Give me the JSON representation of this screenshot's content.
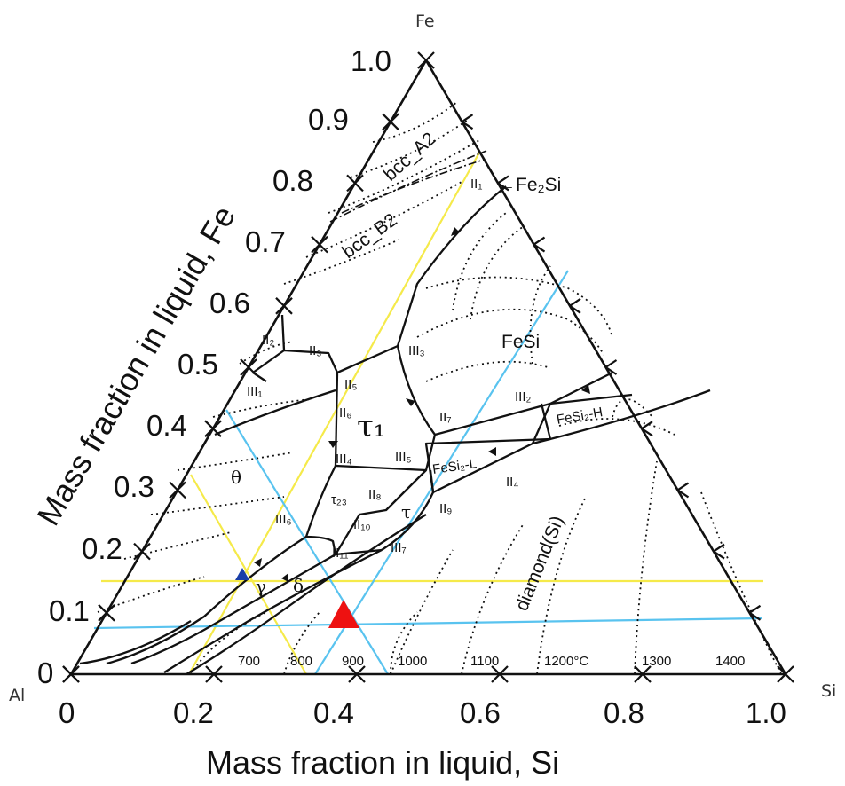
{
  "corners": {
    "top": "Fe",
    "left": "Al",
    "right": "Si"
  },
  "axis_titles": {
    "left": "Mass fraction in liquid, Fe",
    "bottom": "Mass fraction in liquid, Si"
  },
  "left_ticks": [
    "1.0",
    "0.9",
    "0.8",
    "0.7",
    "0.6",
    "0.5",
    "0.4",
    "0.3",
    "0.2",
    "0.1",
    "0"
  ],
  "bottom_ticks": [
    "0",
    "0.2",
    "0.4",
    "0.6",
    "0.8",
    "1.0"
  ],
  "phase_labels": {
    "bcc_a2": "bcc_A2",
    "bcc_b2": "bcc_B2",
    "fe2si": "←Fe₂Si",
    "fesi": "FeSi",
    "tau1": "τ₁",
    "theta": "θ",
    "delta": "δ",
    "gamma": "γ",
    "tau": "τ",
    "tau23": "τ₂₃",
    "fesi2_h": "FeSi₂-H",
    "fesi2_l": "FeSi₂-L",
    "diamond_si": "diamond(Si)"
  },
  "invariant_labels": {
    "II1": "II₁",
    "II2": "II₂",
    "II3a": "II₃",
    "II4": "II₄",
    "II5": "II₅",
    "II6": "II₆",
    "II7": "II₇",
    "II8": "II₈",
    "II9": "II₉",
    "II10": "II₁₀",
    "II11": "II₁₁",
    "III1": "III₁",
    "III2": "III₂",
    "III3": "III₃",
    "III4": "III₄",
    "III5": "III₅",
    "III6": "III₆",
    "III7": "III₇"
  },
  "isotherm_labels": [
    "700",
    "800",
    "900",
    "1000",
    "1100",
    "1200°C",
    "1300",
    "1400"
  ],
  "colors": {
    "boundary": "#111111",
    "yellow_line": "#f5ea4a",
    "blue_line": "#59c3ef",
    "red_marker": "#ee1111",
    "blue_marker": "#1a3fa8"
  }
}
